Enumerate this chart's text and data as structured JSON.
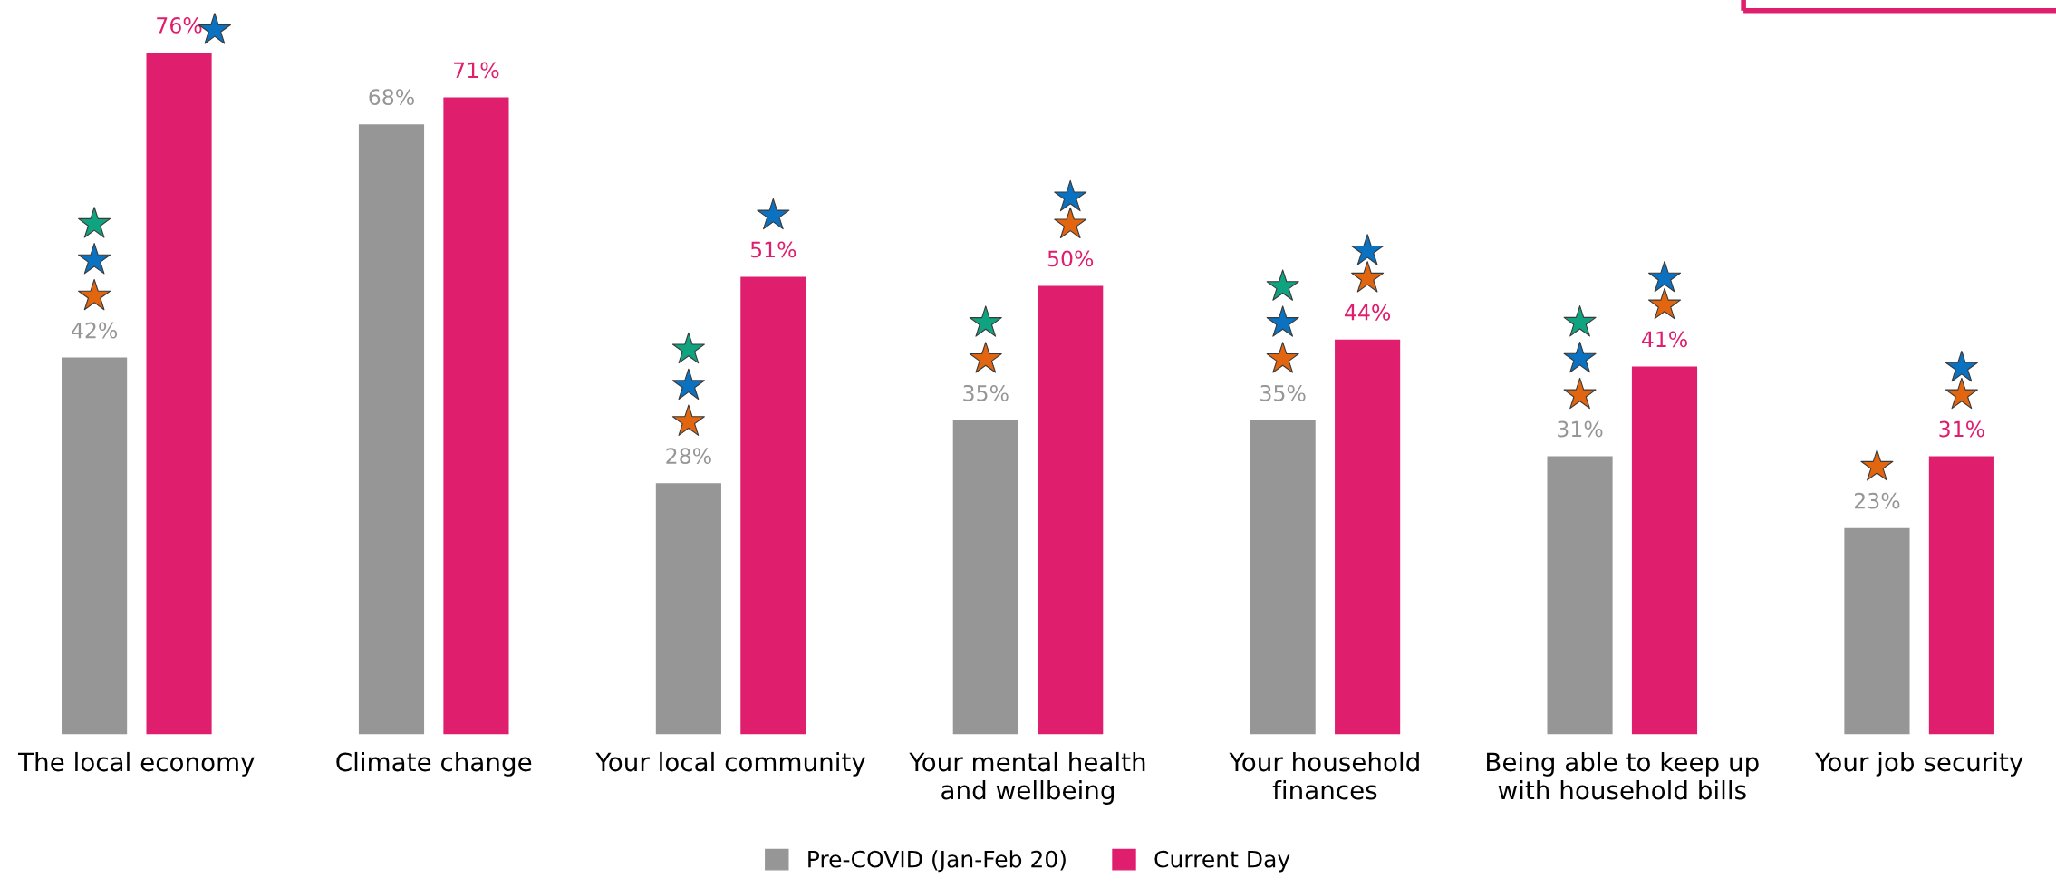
{
  "chart_data": {
    "type": "bar",
    "categories": [
      "The local economy",
      "Climate change",
      "Your local community",
      "Your mental health\nand wellbeing",
      "Your household\nfinances",
      "Being able to keep up\nwith household bills",
      "Your job security"
    ],
    "series": [
      {
        "name": "Pre-COVID (Jan-Feb 20)",
        "color": "#969696",
        "values": [
          42,
          68,
          28,
          35,
          35,
          31,
          23
        ],
        "value_labels": [
          "42%",
          "68%",
          "28%",
          "35%",
          "35%",
          "31%",
          "23%"
        ]
      },
      {
        "name": "Current Day",
        "color": "#e01e6e",
        "values": [
          76,
          71,
          51,
          50,
          44,
          41,
          31
        ],
        "value_labels": [
          "76%",
          "71%",
          "51%",
          "50%",
          "44%",
          "41%",
          "31%"
        ]
      }
    ],
    "legend": "bottom",
    "grid": false
  }
}
